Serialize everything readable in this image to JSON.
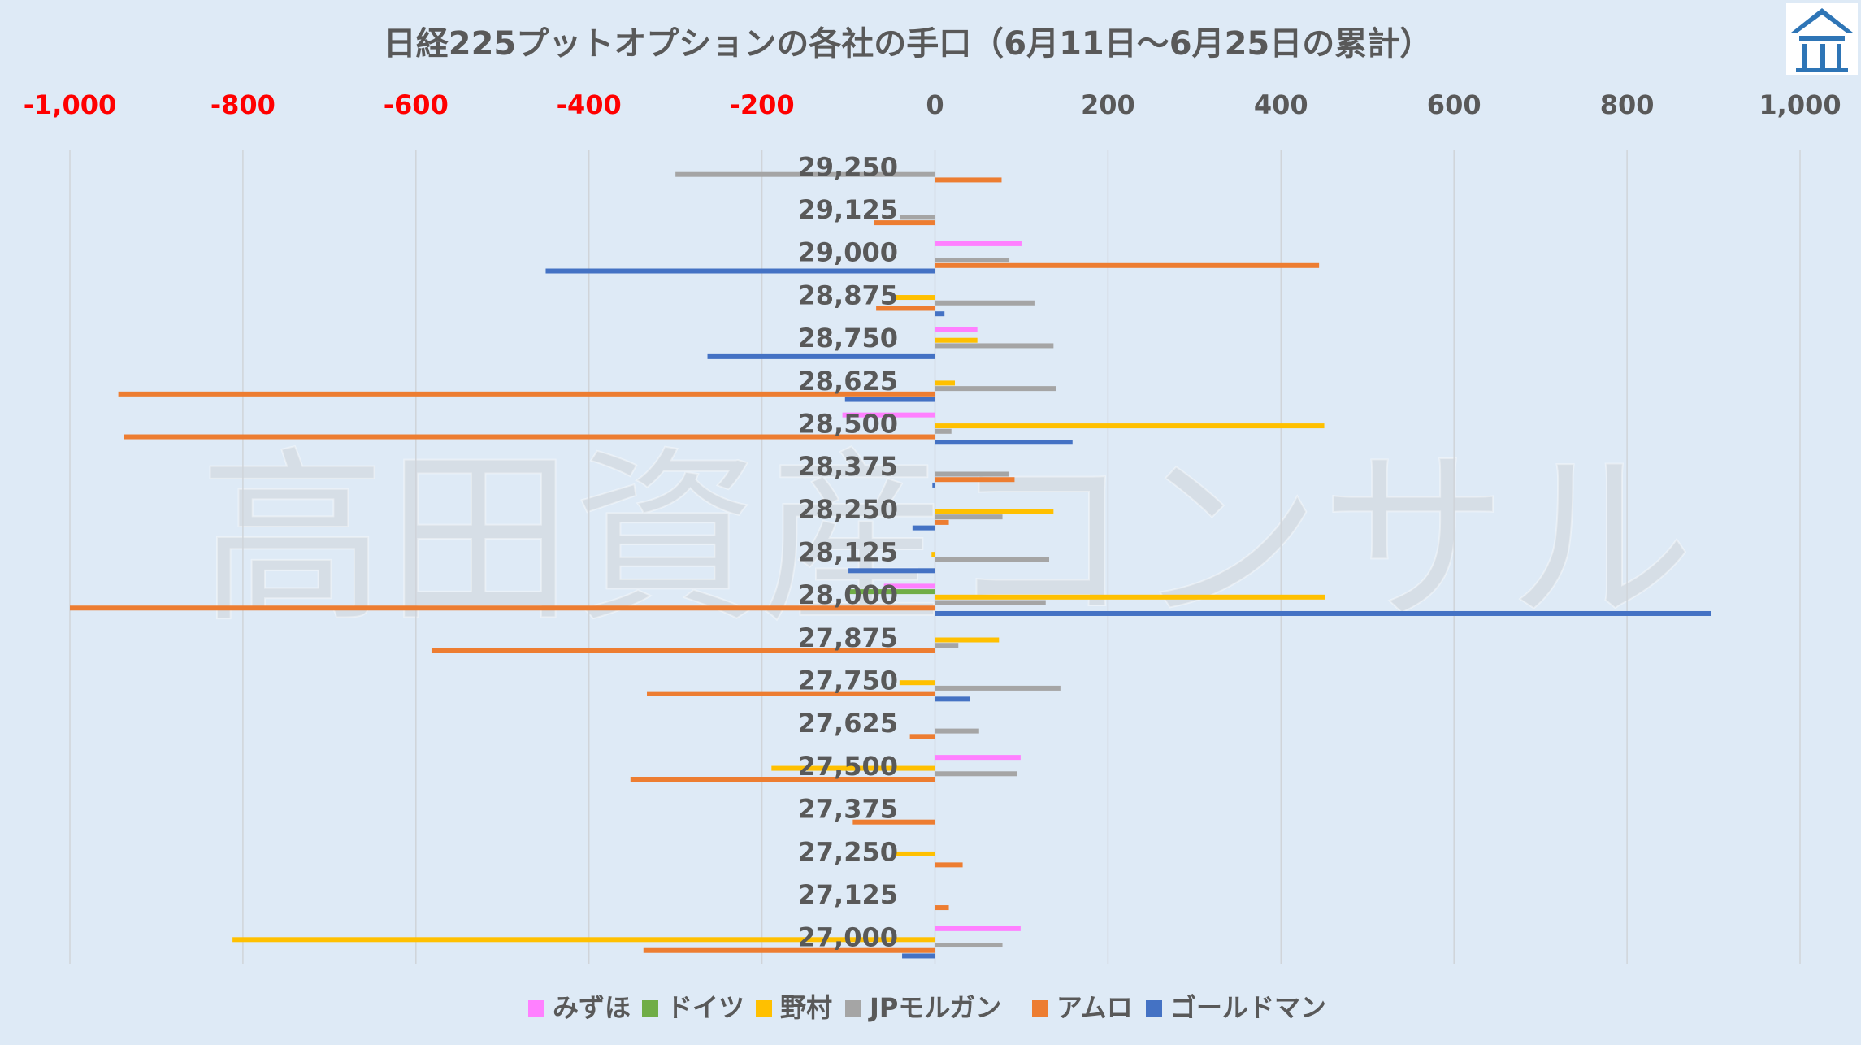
{
  "chart_data": {
    "type": "hbar",
    "title": "日経225プットオプションの各社の手口（6月11日～6月25日の累計）",
    "watermark": "高田資産コンサル",
    "categories": [
      "29,250",
      "29,125",
      "29,000",
      "28,875",
      "28,750",
      "28,625",
      "28,500",
      "28,375",
      "28,250",
      "28,125",
      "28,000",
      "27,875",
      "27,750",
      "27,625",
      "27,500",
      "27,375",
      "27,250",
      "27,125",
      "27,000"
    ],
    "series": [
      {
        "name": "みずほ",
        "color": "#ff80ff",
        "values": [
          0,
          0,
          100,
          0,
          49,
          0,
          -107,
          0,
          0,
          0,
          -59,
          0,
          0,
          0,
          99,
          0,
          0,
          0,
          99
        ]
      },
      {
        "name": "ドイツ",
        "color": "#70ad47",
        "values": [
          0,
          0,
          0,
          0,
          0,
          0,
          0,
          0,
          0,
          0,
          -100,
          0,
          0,
          0,
          0,
          0,
          0,
          0,
          0
        ]
      },
      {
        "name": "野村",
        "color": "#ffc000",
        "values": [
          0,
          0,
          0,
          -45,
          49,
          23,
          450,
          0,
          137,
          -4,
          451,
          74,
          -41,
          0,
          -189,
          0,
          -45,
          0,
          -812
        ]
      },
      {
        "name": "JPモルガン",
        "color": "#a5a5a5",
        "values": [
          -300,
          -40,
          86,
          115,
          137,
          140,
          19,
          85,
          78,
          132,
          128,
          27,
          145,
          51,
          95,
          0,
          0,
          0,
          78
        ]
      },
      {
        "name": "アムロ",
        "color": "#ed7d31",
        "values": [
          77,
          -70,
          444,
          -68,
          0,
          -944,
          -938,
          92,
          16,
          0,
          -1000,
          -582,
          -333,
          -29,
          -352,
          -95,
          32,
          16,
          -337
        ]
      },
      {
        "name": "ゴールドマン",
        "color": "#4472c4",
        "values": [
          0,
          0,
          -450,
          11,
          -263,
          -104,
          159,
          -3,
          -26,
          -100,
          897,
          0,
          40,
          0,
          0,
          0,
          0,
          0,
          -38
        ]
      }
    ],
    "xlim": [
      -1000,
      1000
    ],
    "xticks": [
      {
        "value": -1000,
        "label": "-1,000"
      },
      -800,
      -600,
      -400,
      -200,
      0,
      200,
      400,
      600,
      800,
      {
        "value": 1000,
        "label": "1,000"
      }
    ],
    "negative_tick_color": "#ff0000",
    "tick_color": "#595959",
    "grid": true,
    "legend": "bottom"
  }
}
